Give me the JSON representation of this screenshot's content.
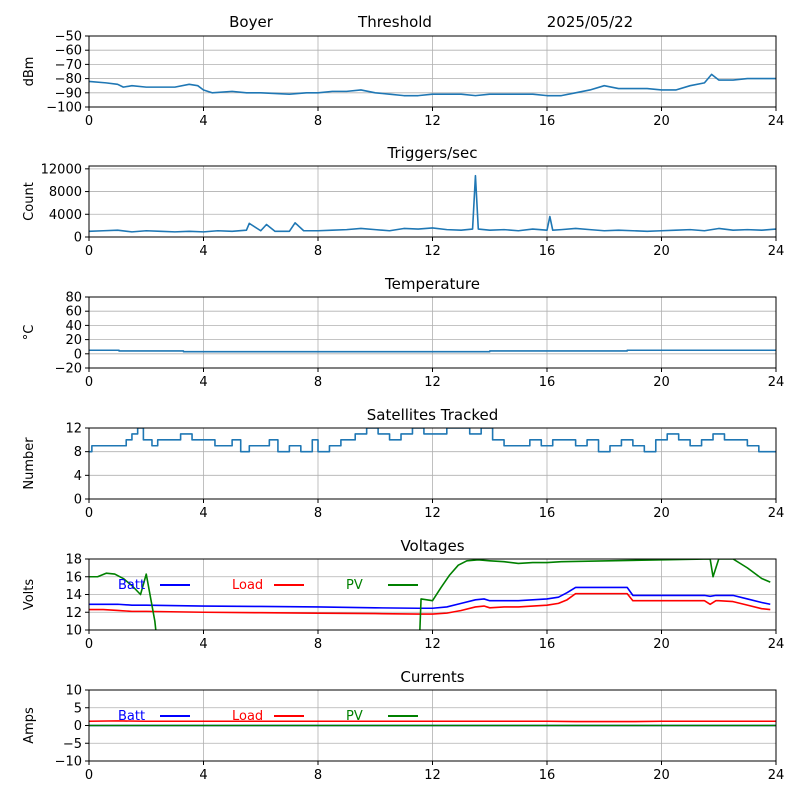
{
  "header": {
    "station": "Boyer",
    "mode": "Threshold",
    "date": "2025/05/22"
  },
  "chart_data": [
    {
      "type": "line",
      "title": "",
      "ylabel": "dBm",
      "xlim": [
        0,
        24
      ],
      "ylim": [
        -100,
        -50
      ],
      "xticks": [
        0,
        4,
        8,
        12,
        16,
        20,
        24
      ],
      "yticks": [
        -100,
        -90,
        -80,
        -70,
        -60,
        -50
      ],
      "ytick_labels": [
        "−100",
        "−90",
        "−80",
        "−70",
        "−60",
        "−50"
      ],
      "grid": true,
      "series": [
        {
          "color": "#1f77b4",
          "x": [
            0,
            0.6,
            1,
            1.2,
            1.5,
            2,
            2.2,
            2.5,
            3,
            3.5,
            3.8,
            4,
            4.3,
            5,
            5.5,
            6,
            7,
            7.6,
            8,
            8.5,
            9,
            9.5,
            10,
            10.5,
            11,
            11.5,
            12,
            12.5,
            13,
            13.5,
            14,
            14.5,
            15,
            15.5,
            16,
            16.5,
            17,
            17.5,
            18,
            18.5,
            19,
            19.5,
            20,
            20.5,
            21,
            21.5,
            21.75,
            22,
            22.5,
            23,
            24
          ],
          "y": [
            -82,
            -83,
            -84,
            -86,
            -85,
            -86,
            -86,
            -86,
            -86,
            -84,
            -85,
            -88,
            -90,
            -89,
            -90,
            -90,
            -91,
            -90,
            -90,
            -89,
            -89,
            -88,
            -90,
            -91,
            -92,
            -92,
            -91,
            -91,
            -91,
            -92,
            -91,
            -91,
            -91,
            -91,
            -92,
            -92,
            -90,
            -88,
            -85,
            -87,
            -87,
            -87,
            -88,
            -88,
            -85,
            -83,
            -77,
            -81,
            -81,
            -80,
            -80
          ]
        }
      ]
    },
    {
      "type": "line",
      "title": "Triggers/sec",
      "ylabel": "Count",
      "xlim": [
        0,
        24
      ],
      "ylim": [
        0,
        12500
      ],
      "xticks": [
        0,
        4,
        8,
        12,
        16,
        20,
        24
      ],
      "yticks": [
        0,
        4000,
        8000,
        12000
      ],
      "ytick_labels": [
        "0",
        "4000",
        "8000",
        "12000"
      ],
      "grid": true,
      "series": [
        {
          "color": "#1f77b4",
          "x": [
            0,
            0.5,
            1,
            1.5,
            2,
            2.5,
            3,
            3.5,
            4,
            4.5,
            5,
            5.5,
            5.6,
            6,
            6.2,
            6.5,
            7,
            7.2,
            7.5,
            8,
            8.5,
            9,
            9.5,
            10,
            10.5,
            11,
            11.5,
            12,
            12.5,
            13,
            13.4,
            13.5,
            13.6,
            14,
            14.5,
            15,
            15.5,
            16,
            16.1,
            16.2,
            16.5,
            17,
            17.5,
            18,
            18.5,
            19,
            19.5,
            20,
            20.5,
            21,
            21.5,
            22,
            22.5,
            23,
            23.5,
            24
          ],
          "y": [
            1000,
            1100,
            1200,
            900,
            1100,
            1000,
            900,
            1000,
            900,
            1100,
            1000,
            1200,
            2400,
            1100,
            2200,
            1000,
            1000,
            2500,
            1100,
            1100,
            1200,
            1300,
            1500,
            1300,
            1100,
            1500,
            1400,
            1600,
            1300,
            1200,
            1400,
            10800,
            1400,
            1200,
            1300,
            1100,
            1400,
            1200,
            3600,
            1200,
            1300,
            1500,
            1300,
            1100,
            1200,
            1100,
            1000,
            1100,
            1200,
            1300,
            1100,
            1500,
            1200,
            1300,
            1200,
            1400
          ]
        }
      ]
    },
    {
      "type": "line",
      "title": "Temperature",
      "ylabel": "°C",
      "xlim": [
        0,
        24
      ],
      "ylim": [
        -20,
        80
      ],
      "xticks": [
        0,
        4,
        8,
        12,
        16,
        20,
        24
      ],
      "yticks": [
        -20,
        0,
        20,
        40,
        60,
        80
      ],
      "ytick_labels": [
        "−20",
        "0",
        "20",
        "40",
        "60",
        "80"
      ],
      "grid": true,
      "series": [
        {
          "color": "#1f77b4",
          "x": [
            0,
            1.05,
            1.05,
            3.3,
            3.3,
            14,
            14,
            18.8,
            18.8,
            24
          ],
          "y": [
            5,
            5,
            4,
            4,
            3,
            3,
            4,
            4,
            5,
            5
          ]
        }
      ]
    },
    {
      "type": "line",
      "title": "Satellites Tracked",
      "ylabel": "Number",
      "xlim": [
        0,
        24
      ],
      "ylim": [
        0,
        12
      ],
      "xticks": [
        0,
        4,
        8,
        12,
        16,
        20,
        24
      ],
      "yticks": [
        0,
        4,
        8,
        12
      ],
      "ytick_labels": [
        "0",
        "4",
        "8",
        "12"
      ],
      "grid": true,
      "series": [
        {
          "color": "#1f77b4",
          "step": true,
          "x": [
            0,
            0.1,
            0.3,
            1.3,
            1.5,
            1.7,
            1.9,
            2.2,
            2.4,
            2.8,
            3.2,
            3.6,
            4,
            4.4,
            5,
            5.3,
            5.6,
            6,
            6.3,
            6.6,
            7,
            7.4,
            7.8,
            8,
            8.4,
            8.8,
            9.3,
            9.7,
            10.1,
            10.5,
            10.9,
            11.3,
            11.7,
            12.1,
            12.5,
            12.9,
            13.3,
            13.7,
            14.1,
            14.5,
            15,
            15.4,
            15.8,
            16.2,
            16.6,
            17,
            17.4,
            17.8,
            18.2,
            18.6,
            19,
            19.4,
            19.8,
            20.2,
            20.6,
            21,
            21.4,
            21.8,
            22.2,
            22.6,
            23,
            23.4,
            24
          ],
          "y": [
            8,
            9,
            9,
            10,
            11,
            12,
            10,
            9,
            10,
            10,
            11,
            10,
            10,
            9,
            10,
            8,
            9,
            9,
            10,
            8,
            9,
            8,
            10,
            8,
            9,
            10,
            11,
            12,
            11,
            10,
            11,
            12,
            11,
            11,
            12,
            12,
            11,
            12,
            10,
            9,
            9,
            10,
            9,
            10,
            10,
            9,
            10,
            8,
            9,
            10,
            9,
            8,
            10,
            11,
            10,
            9,
            10,
            11,
            10,
            10,
            9,
            8,
            8
          ]
        }
      ]
    },
    {
      "type": "line",
      "title": "Voltages",
      "ylabel": "Volts",
      "xlim": [
        0,
        24
      ],
      "ylim": [
        10,
        18
      ],
      "xticks": [
        0,
        4,
        8,
        12,
        16,
        20,
        24
      ],
      "yticks": [
        10,
        12,
        14,
        16,
        18
      ],
      "ytick_labels": [
        "10",
        "12",
        "14",
        "16",
        "18"
      ],
      "grid": true,
      "legend": "top-left",
      "series": [
        {
          "name": "Batt",
          "color": "#0000ff",
          "x": [
            0,
            0.5,
            1,
            1.5,
            2,
            4,
            6,
            8,
            10,
            11.5,
            12,
            12.5,
            13,
            13.5,
            13.8,
            14,
            14.5,
            15,
            15.5,
            16,
            16.4,
            16.7,
            17,
            18,
            18.8,
            19,
            20,
            21,
            21.5,
            21.7,
            21.9,
            22,
            22.5,
            23,
            23.5,
            23.8
          ],
          "y": [
            12.9,
            12.9,
            12.9,
            12.8,
            12.8,
            12.7,
            12.65,
            12.6,
            12.5,
            12.45,
            12.45,
            12.6,
            13.0,
            13.4,
            13.5,
            13.3,
            13.3,
            13.3,
            13.4,
            13.5,
            13.7,
            14.2,
            14.8,
            14.8,
            14.8,
            13.9,
            13.9,
            13.9,
            13.9,
            13.8,
            13.9,
            13.9,
            13.9,
            13.5,
            13.1,
            12.9
          ]
        },
        {
          "name": "Load",
          "color": "#ff0000",
          "x": [
            0,
            0.5,
            1,
            1.5,
            2,
            4,
            6,
            8,
            10,
            11.5,
            12,
            12.5,
            13,
            13.5,
            13.8,
            14,
            14.5,
            15,
            15.5,
            16,
            16.4,
            16.7,
            17,
            18,
            18.8,
            19,
            20,
            21,
            21.5,
            21.7,
            21.9,
            22,
            22.5,
            23,
            23.5,
            23.8
          ],
          "y": [
            12.3,
            12.3,
            12.2,
            12.1,
            12.1,
            12.0,
            11.95,
            11.9,
            11.85,
            11.8,
            11.8,
            11.9,
            12.2,
            12.6,
            12.7,
            12.5,
            12.6,
            12.6,
            12.7,
            12.8,
            13.0,
            13.4,
            14.1,
            14.1,
            14.1,
            13.3,
            13.3,
            13.3,
            13.3,
            12.9,
            13.3,
            13.3,
            13.2,
            12.8,
            12.4,
            12.3
          ]
        },
        {
          "name": "PV",
          "color": "#008000",
          "x": [
            0,
            0.3,
            0.6,
            0.9,
            1.2,
            1.5,
            1.8,
            2.0,
            2.3,
            2.5,
            11.5,
            11.6,
            12,
            12.3,
            12.6,
            12.9,
            13.2,
            13.6,
            14,
            14.5,
            15,
            15.5,
            16,
            16.5,
            21.7,
            21.8,
            22,
            22.5,
            23,
            23.5,
            23.8
          ],
          "y": [
            16,
            16,
            16.4,
            16.3,
            15.8,
            15.0,
            14.0,
            16.3,
            11.0,
            5,
            5,
            13.5,
            13.3,
            14.8,
            16.2,
            17.3,
            17.8,
            17.9,
            17.8,
            17.7,
            17.5,
            17.6,
            17.6,
            17.7,
            18.0,
            16.0,
            18.0,
            18.0,
            17.0,
            15.8,
            15.4
          ]
        }
      ]
    },
    {
      "type": "line",
      "title": "Currents",
      "ylabel": "Amps",
      "xlim": [
        0,
        24
      ],
      "ylim": [
        -10,
        10
      ],
      "xticks": [
        0,
        4,
        8,
        12,
        16,
        20,
        24
      ],
      "yticks": [
        -10,
        -5,
        0,
        5,
        10
      ],
      "ytick_labels": [
        "−10",
        "−5",
        "0",
        "5",
        "10"
      ],
      "grid": true,
      "legend": "top-left",
      "series": [
        {
          "name": "Batt",
          "color": "#0000ff",
          "x": [
            0,
            24
          ],
          "y": [
            0,
            0
          ]
        },
        {
          "name": "Load",
          "color": "#ff0000",
          "x": [
            0,
            1,
            2,
            4,
            8,
            12,
            16,
            17,
            19,
            20,
            24
          ],
          "y": [
            1.2,
            1.3,
            1.2,
            1.2,
            1.2,
            1.2,
            1.2,
            1.1,
            1.1,
            1.2,
            1.2
          ]
        },
        {
          "name": "PV",
          "color": "#008000",
          "x": [
            0,
            24
          ],
          "y": [
            0,
            0
          ]
        }
      ]
    }
  ]
}
